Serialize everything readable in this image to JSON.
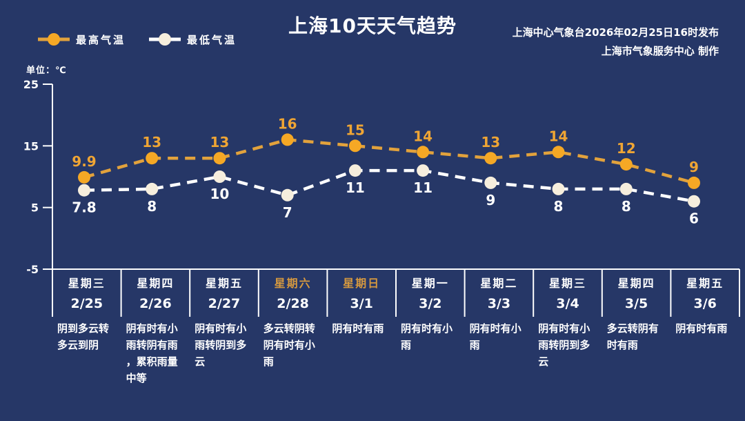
{
  "header": {
    "title": "上海10天天气趋势",
    "publisher_line1": "上海中心气象台2026年02月25日16时发布",
    "publisher_line2": "上海市气象服务中心  制作"
  },
  "legend": {
    "high_label": "最高气温",
    "low_label": "最低气温"
  },
  "chart_data": {
    "type": "line",
    "title": "上海10天天气趋势",
    "unit_label": "单位：℃",
    "ylim": [
      -5,
      25
    ],
    "yticks": [
      25,
      15,
      5,
      -5
    ],
    "categories_day": [
      "星期三",
      "星期四",
      "星期五",
      "星期六",
      "星期日",
      "星期一",
      "星期二",
      "星期三",
      "星期四",
      "星期五"
    ],
    "categories_date": [
      "2/25",
      "2/26",
      "2/27",
      "2/28",
      "3/1",
      "3/2",
      "3/3",
      "3/4",
      "3/5",
      "3/6"
    ],
    "weekend_highlight": [
      false,
      false,
      false,
      true,
      true,
      false,
      false,
      false,
      false,
      false
    ],
    "series": [
      {
        "name": "最高气温",
        "values": [
          9.9,
          13,
          13,
          16,
          15,
          14,
          13,
          14,
          12,
          9
        ],
        "line_color": "#e2a23c",
        "marker_color": "#f5a825",
        "label_color": "#efa534"
      },
      {
        "name": "最低气温",
        "values": [
          7.8,
          8,
          10,
          7,
          11,
          11,
          9,
          8,
          8,
          6
        ],
        "line_color": "#ffffff",
        "marker_color": "#f6eedd",
        "label_color": "#ffffff"
      }
    ],
    "descriptions": [
      "阴到多云转多云到阴",
      "阴有时有小雨转阴有雨，累积雨量中等",
      "阴有时有小雨转阴到多云",
      "多云转阴转阴有时有小雨",
      "阴有时有雨",
      "阴有时有小雨",
      "阴有时有小雨",
      "阴有时有小雨转阴到多云",
      "多云转阴有时有雨",
      "阴有时有雨"
    ],
    "legend_position": "top-left",
    "grid": false
  },
  "colors": {
    "background": "#263767",
    "axis_line": "#ffffff",
    "weekend_text": "#d6993f",
    "high_accent": "#efa534",
    "low_marker": "#f6eedd"
  }
}
